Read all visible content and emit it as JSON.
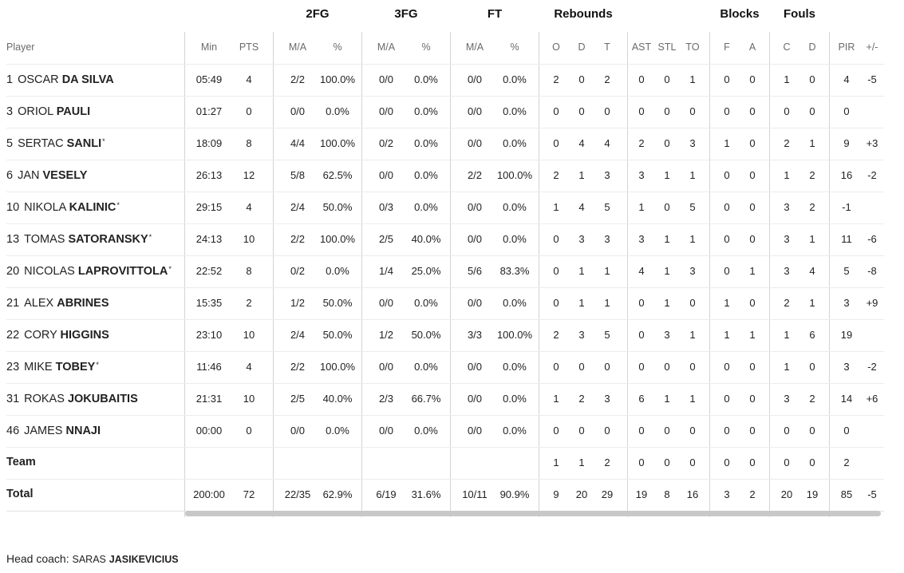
{
  "groups": {
    "fg2": "2FG",
    "fg3": "3FG",
    "ft": "FT",
    "rebounds": "Rebounds",
    "blocks": "Blocks",
    "fouls": "Fouls"
  },
  "columns": {
    "player": "Player",
    "min": "Min",
    "pts": "PTS",
    "fg2_ma": "M/A",
    "fg2_pct": "%",
    "fg3_ma": "M/A",
    "fg3_pct": "%",
    "ft_ma": "M/A",
    "ft_pct": "%",
    "reb_o": "O",
    "reb_d": "D",
    "reb_t": "T",
    "ast": "AST",
    "stl": "STL",
    "to": "TO",
    "blk_f": "F",
    "blk_a": "A",
    "foul_c": "C",
    "foul_d": "D",
    "pir": "PIR",
    "pm": "+/-"
  },
  "players": [
    {
      "num": "1",
      "first": "OSCAR",
      "last": "DA SILVA",
      "starter": "",
      "min": "05:49",
      "pts": "4",
      "fg2_ma": "2/2",
      "fg2_pct": "100.0%",
      "fg3_ma": "0/0",
      "fg3_pct": "0.0%",
      "ft_ma": "0/0",
      "ft_pct": "0.0%",
      "o": "2",
      "d": "0",
      "t": "2",
      "ast": "0",
      "stl": "0",
      "to": "1",
      "bf": "0",
      "ba": "0",
      "fc": "1",
      "fd": "0",
      "pir": "4",
      "pm": "-5"
    },
    {
      "num": "3",
      "first": "ORIOL",
      "last": "PAULI",
      "starter": "",
      "min": "01:27",
      "pts": "0",
      "fg2_ma": "0/0",
      "fg2_pct": "0.0%",
      "fg3_ma": "0/0",
      "fg3_pct": "0.0%",
      "ft_ma": "0/0",
      "ft_pct": "0.0%",
      "o": "0",
      "d": "0",
      "t": "0",
      "ast": "0",
      "stl": "0",
      "to": "0",
      "bf": "0",
      "ba": "0",
      "fc": "0",
      "fd": "0",
      "pir": "0",
      "pm": ""
    },
    {
      "num": "5",
      "first": "SERTAC",
      "last": "SANLI",
      "starter": "*",
      "min": "18:09",
      "pts": "8",
      "fg2_ma": "4/4",
      "fg2_pct": "100.0%",
      "fg3_ma": "0/2",
      "fg3_pct": "0.0%",
      "ft_ma": "0/0",
      "ft_pct": "0.0%",
      "o": "0",
      "d": "4",
      "t": "4",
      "ast": "2",
      "stl": "0",
      "to": "3",
      "bf": "1",
      "ba": "0",
      "fc": "2",
      "fd": "1",
      "pir": "9",
      "pm": "+3"
    },
    {
      "num": "6",
      "first": "JAN",
      "last": "VESELY",
      "starter": "",
      "min": "26:13",
      "pts": "12",
      "fg2_ma": "5/8",
      "fg2_pct": "62.5%",
      "fg3_ma": "0/0",
      "fg3_pct": "0.0%",
      "ft_ma": "2/2",
      "ft_pct": "100.0%",
      "o": "2",
      "d": "1",
      "t": "3",
      "ast": "3",
      "stl": "1",
      "to": "1",
      "bf": "0",
      "ba": "0",
      "fc": "1",
      "fd": "2",
      "pir": "16",
      "pm": "-2"
    },
    {
      "num": "10",
      "first": "NIKOLA",
      "last": "KALINIC",
      "starter": "*",
      "min": "29:15",
      "pts": "4",
      "fg2_ma": "2/4",
      "fg2_pct": "50.0%",
      "fg3_ma": "0/3",
      "fg3_pct": "0.0%",
      "ft_ma": "0/0",
      "ft_pct": "0.0%",
      "o": "1",
      "d": "4",
      "t": "5",
      "ast": "1",
      "stl": "0",
      "to": "5",
      "bf": "0",
      "ba": "0",
      "fc": "3",
      "fd": "2",
      "pir": "-1",
      "pm": ""
    },
    {
      "num": "13",
      "first": "TOMAS",
      "last": "SATORANSKY",
      "starter": "*",
      "min": "24:13",
      "pts": "10",
      "fg2_ma": "2/2",
      "fg2_pct": "100.0%",
      "fg3_ma": "2/5",
      "fg3_pct": "40.0%",
      "ft_ma": "0/0",
      "ft_pct": "0.0%",
      "o": "0",
      "d": "3",
      "t": "3",
      "ast": "3",
      "stl": "1",
      "to": "1",
      "bf": "0",
      "ba": "0",
      "fc": "3",
      "fd": "1",
      "pir": "11",
      "pm": "-6"
    },
    {
      "num": "20",
      "first": "NICOLAS",
      "last": "LAPROVITTOLA",
      "starter": "*",
      "min": "22:52",
      "pts": "8",
      "fg2_ma": "0/2",
      "fg2_pct": "0.0%",
      "fg3_ma": "1/4",
      "fg3_pct": "25.0%",
      "ft_ma": "5/6",
      "ft_pct": "83.3%",
      "o": "0",
      "d": "1",
      "t": "1",
      "ast": "4",
      "stl": "1",
      "to": "3",
      "bf": "0",
      "ba": "1",
      "fc": "3",
      "fd": "4",
      "pir": "5",
      "pm": "-8"
    },
    {
      "num": "21",
      "first": "ALEX",
      "last": "ABRINES",
      "starter": "",
      "min": "15:35",
      "pts": "2",
      "fg2_ma": "1/2",
      "fg2_pct": "50.0%",
      "fg3_ma": "0/0",
      "fg3_pct": "0.0%",
      "ft_ma": "0/0",
      "ft_pct": "0.0%",
      "o": "0",
      "d": "1",
      "t": "1",
      "ast": "0",
      "stl": "1",
      "to": "0",
      "bf": "1",
      "ba": "0",
      "fc": "2",
      "fd": "1",
      "pir": "3",
      "pm": "+9"
    },
    {
      "num": "22",
      "first": "CORY",
      "last": "HIGGINS",
      "starter": "",
      "min": "23:10",
      "pts": "10",
      "fg2_ma": "2/4",
      "fg2_pct": "50.0%",
      "fg3_ma": "1/2",
      "fg3_pct": "50.0%",
      "ft_ma": "3/3",
      "ft_pct": "100.0%",
      "o": "2",
      "d": "3",
      "t": "5",
      "ast": "0",
      "stl": "3",
      "to": "1",
      "bf": "1",
      "ba": "1",
      "fc": "1",
      "fd": "6",
      "pir": "19",
      "pm": ""
    },
    {
      "num": "23",
      "first": "MIKE",
      "last": "TOBEY",
      "starter": "*",
      "min": "11:46",
      "pts": "4",
      "fg2_ma": "2/2",
      "fg2_pct": "100.0%",
      "fg3_ma": "0/0",
      "fg3_pct": "0.0%",
      "ft_ma": "0/0",
      "ft_pct": "0.0%",
      "o": "0",
      "d": "0",
      "t": "0",
      "ast": "0",
      "stl": "0",
      "to": "0",
      "bf": "0",
      "ba": "0",
      "fc": "1",
      "fd": "0",
      "pir": "3",
      "pm": "-2"
    },
    {
      "num": "31",
      "first": "ROKAS",
      "last": "JOKUBAITIS",
      "starter": "",
      "min": "21:31",
      "pts": "10",
      "fg2_ma": "2/5",
      "fg2_pct": "40.0%",
      "fg3_ma": "2/3",
      "fg3_pct": "66.7%",
      "ft_ma": "0/0",
      "ft_pct": "0.0%",
      "o": "1",
      "d": "2",
      "t": "3",
      "ast": "6",
      "stl": "1",
      "to": "1",
      "bf": "0",
      "ba": "0",
      "fc": "3",
      "fd": "2",
      "pir": "14",
      "pm": "+6"
    },
    {
      "num": "46",
      "first": "JAMES",
      "last": "NNAJI",
      "starter": "",
      "min": "00:00",
      "pts": "0",
      "fg2_ma": "0/0",
      "fg2_pct": "0.0%",
      "fg3_ma": "0/0",
      "fg3_pct": "0.0%",
      "ft_ma": "0/0",
      "ft_pct": "0.0%",
      "o": "0",
      "d": "0",
      "t": "0",
      "ast": "0",
      "stl": "0",
      "to": "0",
      "bf": "0",
      "ba": "0",
      "fc": "0",
      "fd": "0",
      "pir": "0",
      "pm": ""
    }
  ],
  "team_row": {
    "label": "Team",
    "min": "",
    "pts": "",
    "fg2_ma": "",
    "fg2_pct": "",
    "fg3_ma": "",
    "fg3_pct": "",
    "ft_ma": "",
    "ft_pct": "",
    "o": "1",
    "d": "1",
    "t": "2",
    "ast": "0",
    "stl": "0",
    "to": "0",
    "bf": "0",
    "ba": "0",
    "fc": "0",
    "fd": "0",
    "pir": "2",
    "pm": ""
  },
  "total_row": {
    "label": "Total",
    "min": "200:00",
    "pts": "72",
    "fg2_ma": "22/35",
    "fg2_pct": "62.9%",
    "fg3_ma": "6/19",
    "fg3_pct": "31.6%",
    "ft_ma": "10/11",
    "ft_pct": "90.9%",
    "o": "9",
    "d": "20",
    "t": "29",
    "ast": "19",
    "stl": "8",
    "to": "16",
    "bf": "3",
    "ba": "2",
    "fc": "20",
    "fd": "19",
    "pir": "85",
    "pm": "-5"
  },
  "coach": {
    "label": "Head coach:",
    "first": "SARAS",
    "last": "JASIKEVICIUS"
  }
}
